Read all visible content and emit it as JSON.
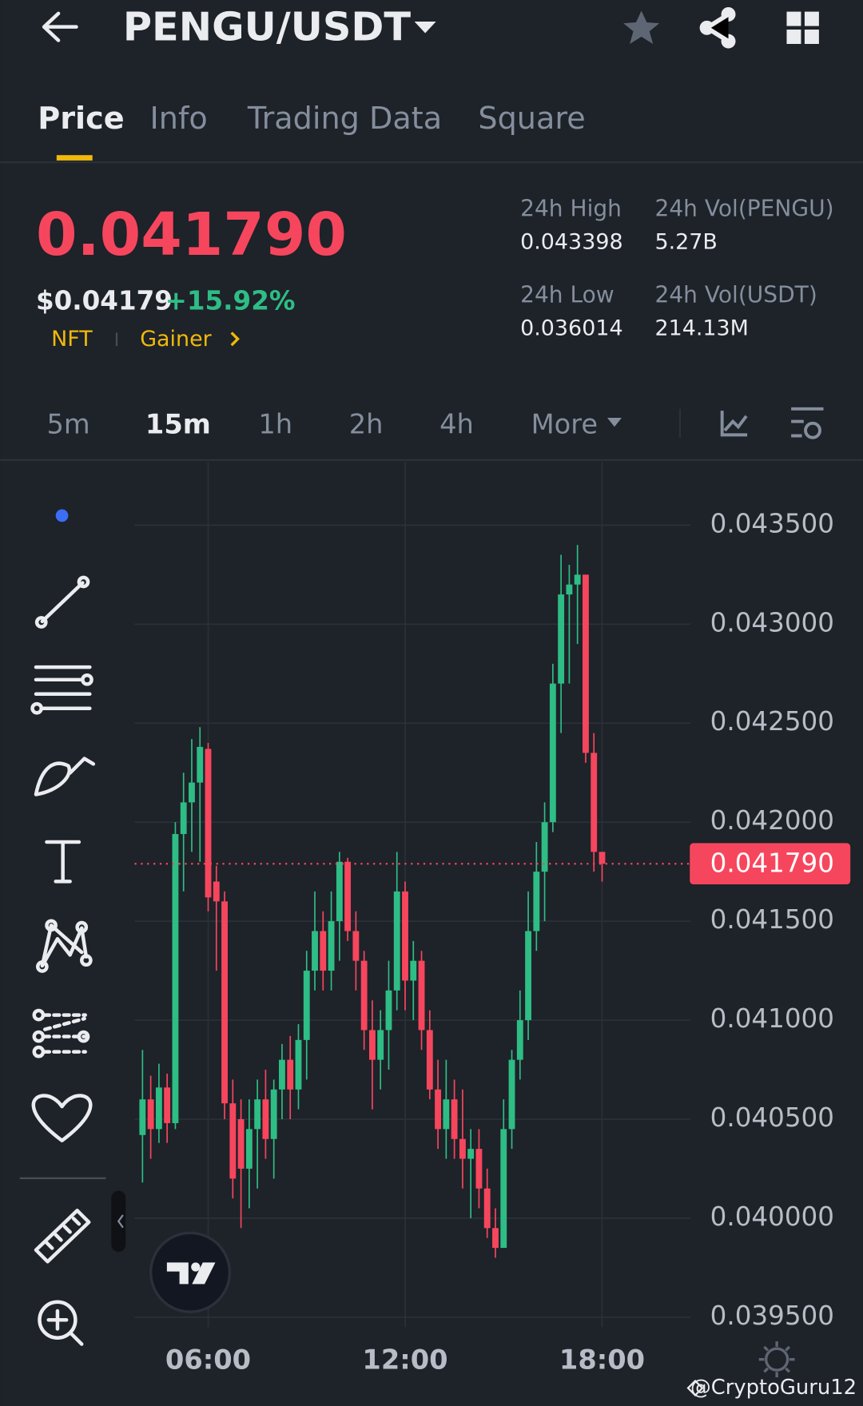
{
  "header": {
    "pair": "PENGU/USDT"
  },
  "tabs": [
    "Price",
    "Info",
    "Trading Data",
    "Square"
  ],
  "ticker": {
    "price": "0.041790",
    "usd_price": "$0.04179",
    "change": "+15.92%",
    "tags": [
      "NFT",
      "Gainer"
    ],
    "stats": [
      {
        "label": "24h High",
        "value": "0.043398"
      },
      {
        "label": "24h Vol(PENGU)",
        "value": "5.27B"
      },
      {
        "label": "24h Low",
        "value": "0.036014"
      },
      {
        "label": "24h Vol(USDT)",
        "value": "214.13M"
      }
    ]
  },
  "intervals": [
    "5m",
    "15m",
    "1h",
    "2h",
    "4h",
    "More"
  ],
  "watermark": "@CryptoGuru12",
  "chart_data": {
    "type": "candlestick",
    "categories": [
      null,
      null,
      null,
      null,
      null,
      null,
      null,
      null,
      "06:00",
      null,
      null,
      null,
      null,
      null,
      null,
      null,
      null,
      null,
      null,
      null,
      null,
      null,
      null,
      null,
      null,
      null,
      null,
      null,
      null,
      null,
      null,
      null,
      "12:00",
      null,
      null,
      null,
      null,
      null,
      null,
      null,
      null,
      null,
      null,
      null,
      null,
      null,
      null,
      null,
      null,
      null,
      null,
      null,
      null,
      null,
      null,
      null,
      "18:00"
    ],
    "open": [
      0.04042,
      0.0406,
      0.04045,
      0.04066,
      0.04048,
      0.04194,
      0.0421,
      0.0422,
      0.04237,
      0.0417,
      0.0416,
      0.04058,
      0.0405,
      0.04025,
      0.04045,
      0.0406,
      0.0404,
      0.04065,
      0.0408,
      0.04065,
      0.0409,
      0.04125,
      0.04145,
      0.04125,
      0.0415,
      0.0418,
      0.04145,
      0.0413,
      0.04095,
      0.0408,
      0.04095,
      0.04115,
      0.04165,
      0.0412,
      0.0413,
      0.04095,
      0.04065,
      0.04045,
      0.0406,
      0.0404,
      0.0403,
      0.04035,
      0.04015,
      0.03995,
      0.03985,
      0.04045,
      0.0408,
      0.041,
      0.04145,
      0.04175,
      0.042,
      0.0427,
      0.04315,
      0.0432,
      0.04325,
      0.04235,
      0.04185
    ],
    "high": [
      0.04085,
      0.04072,
      0.04078,
      0.04073,
      0.042,
      0.04225,
      0.04242,
      0.04248,
      0.0424,
      0.04178,
      0.04165,
      0.0407,
      0.0406,
      0.0406,
      0.0407,
      0.04075,
      0.0407,
      0.04088,
      0.04092,
      0.04098,
      0.04135,
      0.04165,
      0.04155,
      0.04165,
      0.04185,
      0.04182,
      0.04155,
      0.04135,
      0.0411,
      0.04105,
      0.0413,
      0.04185,
      0.0417,
      0.0414,
      0.04135,
      0.04105,
      0.0408,
      0.0408,
      0.0407,
      0.04065,
      0.04045,
      0.04045,
      0.04025,
      0.04005,
      0.0406,
      0.04085,
      0.04115,
      0.04165,
      0.0419,
      0.0421,
      0.0428,
      0.04335,
      0.0433,
      0.0434,
      0.04325,
      0.04245,
      0.04185
    ],
    "low": [
      0.04018,
      0.0403,
      0.04038,
      0.04038,
      0.04045,
      0.04165,
      0.04185,
      0.0418,
      0.04155,
      0.04125,
      0.0405,
      0.0401,
      0.03995,
      0.04005,
      0.04015,
      0.0403,
      0.0402,
      0.0405,
      0.0405,
      0.04055,
      0.0407,
      0.04115,
      0.04115,
      0.04115,
      0.0413,
      0.0414,
      0.04115,
      0.04085,
      0.04055,
      0.04065,
      0.04075,
      0.04105,
      0.04105,
      0.041,
      0.04085,
      0.0406,
      0.04035,
      0.0403,
      0.0403,
      0.04015,
      0.04,
      0.04005,
      0.0399,
      0.0398,
      0.03985,
      0.04035,
      0.0407,
      0.0409,
      0.04135,
      0.0415,
      0.04195,
      0.04245,
      0.0427,
      0.0429,
      0.0423,
      0.04175,
      0.0417
    ],
    "close": [
      0.0406,
      0.04045,
      0.04066,
      0.04048,
      0.04194,
      0.0421,
      0.0422,
      0.04238,
      0.04162,
      0.0416,
      0.04058,
      0.0402,
      0.04025,
      0.04045,
      0.0406,
      0.0404,
      0.04065,
      0.0408,
      0.04065,
      0.0409,
      0.04125,
      0.04145,
      0.04125,
      0.0415,
      0.0418,
      0.04145,
      0.0413,
      0.04095,
      0.0408,
      0.04095,
      0.04115,
      0.04165,
      0.0412,
      0.0413,
      0.04095,
      0.04065,
      0.04045,
      0.0406,
      0.0404,
      0.0403,
      0.04035,
      0.04015,
      0.03995,
      0.03985,
      0.04045,
      0.0408,
      0.041,
      0.04145,
      0.04175,
      0.042,
      0.0427,
      0.04315,
      0.0432,
      0.04325,
      0.04235,
      0.04185,
      0.04179
    ],
    "up_color": "#2ebd85",
    "down_color": "#f6465d",
    "current_price": {
      "value": 0.04179,
      "label": "0.041790"
    },
    "ylim": [
      0.03945,
      0.04382
    ],
    "yticks": [
      {
        "value": 0.0395,
        "label": "0.039500"
      },
      {
        "value": 0.04,
        "label": "0.040000"
      },
      {
        "value": 0.0405,
        "label": "0.040500"
      },
      {
        "value": 0.041,
        "label": "0.041000"
      },
      {
        "value": 0.0415,
        "label": "0.041500"
      },
      {
        "value": 0.042,
        "label": "0.042000"
      },
      {
        "value": 0.0425,
        "label": "0.042500"
      },
      {
        "value": 0.043,
        "label": "0.043000"
      },
      {
        "value": 0.0435,
        "label": "0.043500"
      }
    ],
    "grid": true
  }
}
